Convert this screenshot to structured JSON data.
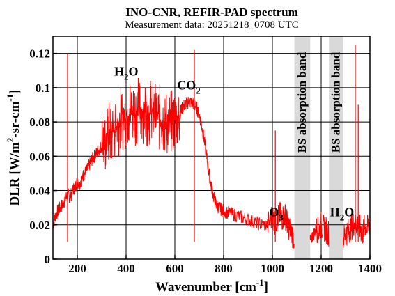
{
  "chart_data": {
    "type": "line",
    "title": "INO-CNR, REFIR-PAD spectrum",
    "subtitle": "Measurement data: 20251218_0708 UTC",
    "xlabel": {
      "base": "Wavenumber [cm",
      "sup": "-1",
      "tail": "]"
    },
    "ylabel": {
      "a": "DLR [W/m",
      "sup1": "2",
      "b": "-sr-cm",
      "sup2": "-1",
      "c": "]"
    },
    "xlim": [
      100,
      1400
    ],
    "ylim": [
      0,
      0.13
    ],
    "x_ticks": [
      "200",
      "400",
      "600",
      "800",
      "1000",
      "1200",
      "1400"
    ],
    "x_tick_values": [
      200,
      400,
      600,
      800,
      1000,
      1200,
      1400
    ],
    "y_ticks": [
      "0",
      "0.02",
      "0.04",
      "0.06",
      "0.08",
      "0.1",
      "0.12"
    ],
    "y_tick_values": [
      0,
      0.02,
      0.04,
      0.06,
      0.08,
      0.1,
      0.12
    ],
    "grid": true,
    "line_color": "#ff0000",
    "band_color": "#d9d9d9",
    "shaded_bands": [
      {
        "label": "BS absorption band",
        "x_range": [
          1090,
          1155
        ]
      },
      {
        "label": "BS absorption band",
        "x_range": [
          1232,
          1290
        ]
      }
    ],
    "annotations": [
      {
        "base": "H",
        "sub": "2",
        "tail": "O",
        "x": 450,
        "y": 0.107
      },
      {
        "base": "CO",
        "sub": "2",
        "tail": "",
        "x": 705,
        "y": 0.099
      },
      {
        "base": "O",
        "sub": "3",
        "tail": "",
        "x": 1045,
        "y": 0.025
      },
      {
        "base": "H",
        "sub": "2",
        "tail": "O",
        "x": 1335,
        "y": 0.025
      }
    ],
    "series": [
      {
        "x": [
          100,
          110,
          120,
          130,
          140,
          150,
          160,
          170,
          180,
          190,
          200,
          210,
          220,
          230,
          240,
          250,
          260,
          270,
          280,
          290,
          300,
          310,
          320,
          330,
          340,
          350,
          360,
          370,
          380,
          390,
          400,
          410,
          420,
          430,
          440,
          450,
          460,
          470,
          480,
          490,
          500,
          510,
          520,
          530,
          540,
          550,
          560,
          570,
          580,
          590,
          600,
          610,
          620,
          630,
          640,
          650,
          660,
          670,
          680,
          690,
          700,
          710,
          720,
          730,
          740,
          750,
          760,
          770,
          780,
          790,
          800,
          820,
          840,
          860,
          880,
          900,
          920,
          940,
          960,
          980,
          1000,
          1010,
          1020,
          1030,
          1040,
          1050,
          1060,
          1070,
          1080,
          1090,
          1155,
          1160,
          1170,
          1180,
          1190,
          1200,
          1210,
          1220,
          1232,
          1290,
          1300,
          1310,
          1320,
          1330,
          1340,
          1350,
          1360,
          1370,
          1380,
          1390,
          1400
        ],
        "y": [
          0.02,
          0.025,
          0.028,
          0.03,
          0.032,
          0.035,
          0.038,
          0.036,
          0.04,
          0.042,
          0.045,
          0.044,
          0.048,
          0.05,
          0.052,
          0.055,
          0.058,
          0.06,
          0.062,
          0.064,
          0.066,
          0.068,
          0.07,
          0.073,
          0.075,
          0.077,
          0.078,
          0.08,
          0.082,
          0.083,
          0.084,
          0.085,
          0.086,
          0.087,
          0.086,
          0.087,
          0.086,
          0.087,
          0.086,
          0.085,
          0.086,
          0.085,
          0.084,
          0.083,
          0.082,
          0.081,
          0.08,
          0.079,
          0.078,
          0.08,
          0.082,
          0.083,
          0.085,
          0.088,
          0.09,
          0.091,
          0.092,
          0.091,
          0.09,
          0.088,
          0.084,
          0.078,
          0.07,
          0.06,
          0.05,
          0.042,
          0.036,
          0.032,
          0.03,
          0.029,
          0.028,
          0.027,
          0.026,
          0.025,
          0.024,
          0.023,
          0.022,
          0.021,
          0.02,
          0.02,
          0.025,
          0.022,
          0.023,
          0.026,
          0.024,
          0.026,
          0.022,
          0.018,
          0.015,
          0.012,
          0.01,
          0.012,
          0.015,
          0.018,
          0.016,
          0.02,
          0.018,
          0.017,
          0.015,
          0.012,
          0.015,
          0.016,
          0.018,
          0.02,
          0.022,
          0.02,
          0.018,
          0.015,
          0.02,
          0.018,
          0.022
        ]
      }
    ],
    "spike_peaks": [
      {
        "x": 160,
        "y": 0.12
      },
      {
        "x": 680,
        "y": 0.122
      },
      {
        "x": 1012,
        "y": 0.075
      },
      {
        "x": 1340,
        "y": 0.125
      },
      {
        "x": 1352,
        "y": 0.09
      }
    ]
  }
}
